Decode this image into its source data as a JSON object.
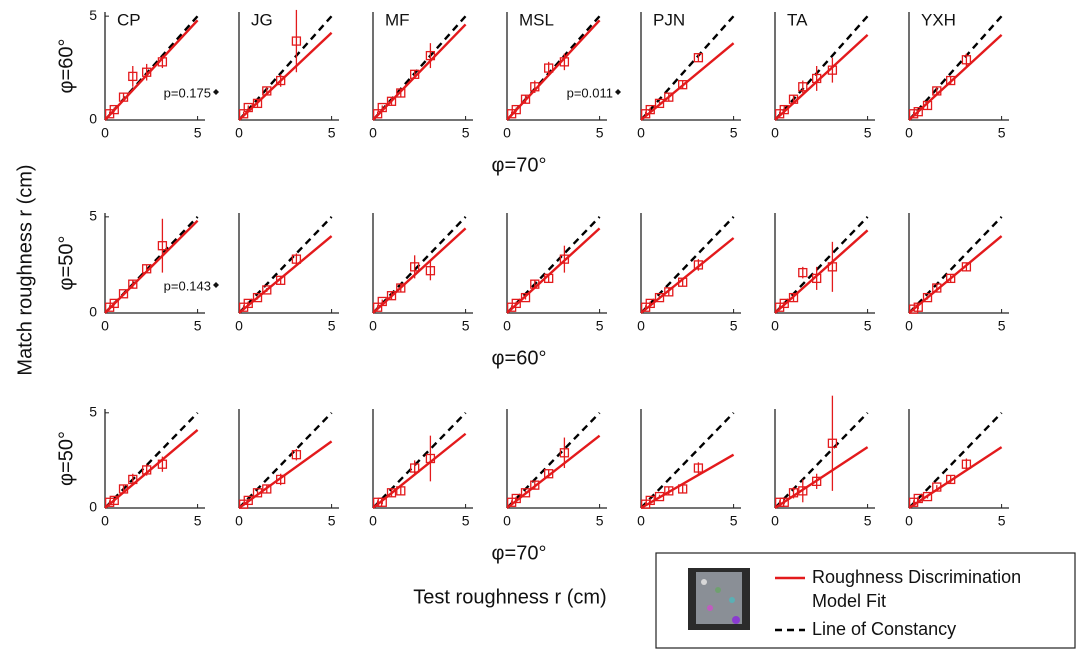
{
  "figure": {
    "y_label": "Match roughness r (cm)",
    "x_label": "Test roughness r (cm)"
  },
  "legend": {
    "entries": [
      {
        "label_lines": [
          "Roughness Discrimination",
          "Model Fit"
        ],
        "color": "#e31a1c",
        "style": "solid"
      },
      {
        "label_lines": [
          "Line of Constancy"
        ],
        "color": "#000000",
        "style": "dashed"
      }
    ]
  },
  "chart_data": [
    {
      "type": "scatter",
      "title": "CP",
      "ylabel": "φ=60°",
      "annotation": "p=0.175",
      "x": [
        0.25,
        0.5,
        1,
        1.5,
        2.25,
        3.1
      ],
      "values": [
        0.3,
        0.5,
        1.1,
        2.1,
        2.3,
        2.8
      ],
      "errors": [
        0.1,
        0.1,
        0.2,
        0.5,
        0.4,
        0.3
      ],
      "color": "#e31a1c",
      "fit": {
        "x": [
          0,
          5
        ],
        "values": [
          0,
          4.8
        ]
      },
      "constancy": {
        "x": [
          0,
          5
        ],
        "values": [
          0,
          5
        ]
      },
      "xlim": [
        0,
        5.4
      ],
      "ylim": [
        0,
        5.2
      ],
      "xticks": [
        0,
        5
      ],
      "yticks": [
        0,
        5
      ]
    },
    {
      "type": "scatter",
      "title": "JG",
      "x": [
        0.25,
        0.5,
        1,
        1.5,
        2.25,
        3.1
      ],
      "values": [
        0.3,
        0.6,
        0.8,
        1.4,
        1.9,
        3.8
      ],
      "errors": [
        0.1,
        0.1,
        0.2,
        0.2,
        0.3,
        1.5
      ],
      "color": "#e31a1c",
      "fit": {
        "x": [
          0,
          5
        ],
        "values": [
          0,
          4.2
        ]
      },
      "constancy": {
        "x": [
          0,
          5
        ],
        "values": [
          0,
          5
        ]
      },
      "xlim": [
        0,
        5.4
      ],
      "ylim": [
        0,
        5.2
      ],
      "xticks": [
        0,
        5
      ]
    },
    {
      "type": "scatter",
      "title": "MF",
      "x": [
        0.25,
        0.5,
        1,
        1.5,
        2.25,
        3.1
      ],
      "values": [
        0.3,
        0.6,
        0.9,
        1.3,
        2.2,
        3.1
      ],
      "errors": [
        0.1,
        0.1,
        0.2,
        0.2,
        0.2,
        0.6
      ],
      "color": "#e31a1c",
      "fit": {
        "x": [
          0,
          5
        ],
        "values": [
          0,
          4.6
        ]
      },
      "constancy": {
        "x": [
          0,
          5
        ],
        "values": [
          0,
          5
        ]
      },
      "xlim": [
        0,
        5.4
      ],
      "ylim": [
        0,
        5.2
      ],
      "xticks": [
        0,
        5
      ]
    },
    {
      "type": "scatter",
      "title": "MSL",
      "xlabel": "φ=70°",
      "annotation": "p=0.011",
      "x": [
        0.25,
        0.5,
        1,
        1.5,
        2.25,
        3.1
      ],
      "values": [
        0.3,
        0.5,
        1.0,
        1.6,
        2.5,
        2.8
      ],
      "errors": [
        0.1,
        0.1,
        0.2,
        0.3,
        0.3,
        0.4
      ],
      "color": "#e31a1c",
      "fit": {
        "x": [
          0,
          5
        ],
        "values": [
          0,
          4.8
        ]
      },
      "constancy": {
        "x": [
          0,
          5
        ],
        "values": [
          0,
          5
        ]
      },
      "xlim": [
        0,
        5.4
      ],
      "ylim": [
        0,
        5.2
      ],
      "xticks": [
        0,
        5
      ]
    },
    {
      "type": "scatter",
      "title": "PJN",
      "x": [
        0.25,
        0.5,
        1,
        1.5,
        2.25,
        3.1
      ],
      "values": [
        0.3,
        0.5,
        0.8,
        1.1,
        1.7,
        3.0
      ],
      "errors": [
        0.1,
        0.1,
        0.1,
        0.2,
        0.2,
        0.2
      ],
      "color": "#e31a1c",
      "fit": {
        "x": [
          0,
          5
        ],
        "values": [
          0,
          3.7
        ]
      },
      "constancy": {
        "x": [
          0,
          5
        ],
        "values": [
          0,
          5
        ]
      },
      "xlim": [
        0,
        5.4
      ],
      "ylim": [
        0,
        5.2
      ],
      "xticks": [
        0,
        5
      ]
    },
    {
      "type": "scatter",
      "title": "TA",
      "x": [
        0.25,
        0.5,
        1,
        1.5,
        2.25,
        3.1
      ],
      "values": [
        0.3,
        0.5,
        1.0,
        1.6,
        2.0,
        2.4
      ],
      "errors": [
        0.1,
        0.2,
        0.2,
        0.3,
        0.6,
        0.6
      ],
      "color": "#e31a1c",
      "fit": {
        "x": [
          0,
          5
        ],
        "values": [
          0,
          4.1
        ]
      },
      "constancy": {
        "x": [
          0,
          5
        ],
        "values": [
          0,
          5
        ]
      },
      "xlim": [
        0,
        5.4
      ],
      "ylim": [
        0,
        5.2
      ],
      "xticks": [
        0,
        5
      ]
    },
    {
      "type": "scatter",
      "title": "YXH",
      "x": [
        0.25,
        0.5,
        1,
        1.5,
        2.25,
        3.1
      ],
      "values": [
        0.3,
        0.4,
        0.7,
        1.4,
        1.9,
        2.9
      ],
      "errors": [
        0.1,
        0.1,
        0.2,
        0.2,
        0.2,
        0.3
      ],
      "color": "#e31a1c",
      "fit": {
        "x": [
          0,
          5
        ],
        "values": [
          0,
          4.1
        ]
      },
      "constancy": {
        "x": [
          0,
          5
        ],
        "values": [
          0,
          5
        ]
      },
      "xlim": [
        0,
        5.4
      ],
      "ylim": [
        0,
        5.2
      ],
      "xticks": [
        0,
        5
      ]
    },
    {
      "type": "scatter",
      "ylabel": "φ=50°",
      "annotation": "p=0.143",
      "x": [
        0.25,
        0.5,
        1,
        1.5,
        2.25,
        3.1
      ],
      "values": [
        0.3,
        0.5,
        1.0,
        1.5,
        2.3,
        3.5
      ],
      "errors": [
        0.1,
        0.1,
        0.1,
        0.2,
        0.2,
        1.4
      ],
      "color": "#e31a1c",
      "fit": {
        "x": [
          0,
          5
        ],
        "values": [
          0,
          4.8
        ]
      },
      "constancy": {
        "x": [
          0,
          5
        ],
        "values": [
          0,
          5
        ]
      },
      "xlim": [
        0,
        5.4
      ],
      "ylim": [
        0,
        5.2
      ],
      "xticks": [
        0,
        5
      ],
      "yticks": [
        0,
        5
      ]
    },
    {
      "type": "scatter",
      "x": [
        0.25,
        0.5,
        1,
        1.5,
        2.25,
        3.1
      ],
      "values": [
        0.3,
        0.5,
        0.8,
        1.2,
        1.7,
        2.8
      ],
      "errors": [
        0.1,
        0.1,
        0.1,
        0.1,
        0.2,
        0.3
      ],
      "color": "#e31a1c",
      "fit": {
        "x": [
          0,
          5
        ],
        "values": [
          0,
          4.0
        ]
      },
      "constancy": {
        "x": [
          0,
          5
        ],
        "values": [
          0,
          5
        ]
      },
      "xlim": [
        0,
        5.4
      ],
      "ylim": [
        0,
        5.2
      ],
      "xticks": [
        0,
        5
      ]
    },
    {
      "type": "scatter",
      "x": [
        0.25,
        0.5,
        1,
        1.5,
        2.25,
        3.1
      ],
      "values": [
        0.3,
        0.6,
        0.9,
        1.3,
        2.4,
        2.2
      ],
      "errors": [
        0.1,
        0.1,
        0.2,
        0.2,
        0.6,
        0.5
      ],
      "color": "#e31a1c",
      "fit": {
        "x": [
          0,
          5
        ],
        "values": [
          0,
          4.4
        ]
      },
      "constancy": {
        "x": [
          0,
          5
        ],
        "values": [
          0,
          5
        ]
      },
      "xlim": [
        0,
        5.4
      ],
      "ylim": [
        0,
        5.2
      ],
      "xticks": [
        0,
        5
      ]
    },
    {
      "type": "scatter",
      "xlabel": "φ=60°",
      "x": [
        0.25,
        0.5,
        1,
        1.5,
        2.25,
        3.1
      ],
      "values": [
        0.3,
        0.5,
        0.8,
        1.5,
        1.8,
        2.8
      ],
      "errors": [
        0.1,
        0.1,
        0.1,
        0.2,
        0.2,
        0.7
      ],
      "color": "#e31a1c",
      "fit": {
        "x": [
          0,
          5
        ],
        "values": [
          0,
          4.4
        ]
      },
      "constancy": {
        "x": [
          0,
          5
        ],
        "values": [
          0,
          5
        ]
      },
      "xlim": [
        0,
        5.4
      ],
      "ylim": [
        0,
        5.2
      ],
      "xticks": [
        0,
        5
      ]
    },
    {
      "type": "scatter",
      "x": [
        0.25,
        0.5,
        1,
        1.5,
        2.25,
        3.1
      ],
      "values": [
        0.3,
        0.5,
        0.8,
        1.1,
        1.6,
        2.5
      ],
      "errors": [
        0.1,
        0.1,
        0.1,
        0.2,
        0.2,
        0.3
      ],
      "color": "#e31a1c",
      "fit": {
        "x": [
          0,
          5
        ],
        "values": [
          0,
          3.9
        ]
      },
      "constancy": {
        "x": [
          0,
          5
        ],
        "values": [
          0,
          5
        ]
      },
      "xlim": [
        0,
        5.4
      ],
      "ylim": [
        0,
        5.2
      ],
      "xticks": [
        0,
        5
      ]
    },
    {
      "type": "scatter",
      "x": [
        0.25,
        0.5,
        1,
        1.5,
        2.25,
        3.1
      ],
      "values": [
        0.3,
        0.5,
        0.8,
        2.1,
        1.8,
        2.4
      ],
      "errors": [
        0.1,
        0.1,
        0.2,
        0.3,
        0.6,
        1.3
      ],
      "color": "#e31a1c",
      "fit": {
        "x": [
          0,
          5
        ],
        "values": [
          0,
          4.3
        ]
      },
      "constancy": {
        "x": [
          0,
          5
        ],
        "values": [
          0,
          5
        ]
      },
      "xlim": [
        0,
        5.4
      ],
      "ylim": [
        0,
        5.2
      ],
      "xticks": [
        0,
        5
      ]
    },
    {
      "type": "scatter",
      "x": [
        0.25,
        0.5,
        1,
        1.5,
        2.25,
        3.1
      ],
      "values": [
        0.2,
        0.3,
        0.8,
        1.3,
        1.8,
        2.4
      ],
      "errors": [
        0.1,
        0.1,
        0.1,
        0.2,
        0.2,
        0.2
      ],
      "color": "#e31a1c",
      "fit": {
        "x": [
          0,
          5
        ],
        "values": [
          0,
          4.0
        ]
      },
      "constancy": {
        "x": [
          0,
          5
        ],
        "values": [
          0,
          5
        ]
      },
      "xlim": [
        0,
        5.4
      ],
      "ylim": [
        0,
        5.2
      ],
      "xticks": [
        0,
        5
      ]
    },
    {
      "type": "scatter",
      "ylabel": "φ=50°",
      "x": [
        0.25,
        0.5,
        1,
        1.5,
        2.25,
        3.1
      ],
      "values": [
        0.3,
        0.4,
        1.0,
        1.5,
        2.0,
        2.3
      ],
      "errors": [
        0.1,
        0.1,
        0.2,
        0.3,
        0.3,
        0.4
      ],
      "color": "#e31a1c",
      "fit": {
        "x": [
          0,
          5
        ],
        "values": [
          0,
          4.1
        ]
      },
      "constancy": {
        "x": [
          0,
          5
        ],
        "values": [
          0,
          5
        ]
      },
      "xlim": [
        0,
        5.4
      ],
      "ylim": [
        0,
        5.2
      ],
      "xticks": [
        0,
        5
      ],
      "yticks": [
        0,
        5
      ]
    },
    {
      "type": "scatter",
      "x": [
        0.25,
        0.5,
        1,
        1.5,
        2.25,
        3.1
      ],
      "values": [
        0.2,
        0.4,
        0.8,
        1.0,
        1.5,
        2.8
      ],
      "errors": [
        0.1,
        0.1,
        0.1,
        0.2,
        0.3,
        0.3
      ],
      "color": "#e31a1c",
      "fit": {
        "x": [
          0,
          5
        ],
        "values": [
          0,
          3.5
        ]
      },
      "constancy": {
        "x": [
          0,
          5
        ],
        "values": [
          0,
          5
        ]
      },
      "xlim": [
        0,
        5.4
      ],
      "ylim": [
        0,
        5.2
      ],
      "xticks": [
        0,
        5
      ]
    },
    {
      "type": "scatter",
      "x": [
        0.25,
        0.5,
        1,
        1.5,
        2.25,
        3.1
      ],
      "values": [
        0.3,
        0.3,
        0.8,
        0.9,
        2.1,
        2.6
      ],
      "errors": [
        0.1,
        0.1,
        0.2,
        0.2,
        0.4,
        1.2
      ],
      "color": "#e31a1c",
      "fit": {
        "x": [
          0,
          5
        ],
        "values": [
          0,
          3.9
        ]
      },
      "constancy": {
        "x": [
          0,
          5
        ],
        "values": [
          0,
          5
        ]
      },
      "xlim": [
        0,
        5.4
      ],
      "ylim": [
        0,
        5.2
      ],
      "xticks": [
        0,
        5
      ]
    },
    {
      "type": "scatter",
      "xlabel": "φ=70°",
      "x": [
        0.25,
        0.5,
        1,
        1.5,
        2.25,
        3.1
      ],
      "values": [
        0.3,
        0.5,
        0.8,
        1.2,
        1.8,
        2.9
      ],
      "errors": [
        0.1,
        0.1,
        0.1,
        0.2,
        0.2,
        0.8
      ],
      "color": "#e31a1c",
      "fit": {
        "x": [
          0,
          5
        ],
        "values": [
          0,
          3.8
        ]
      },
      "constancy": {
        "x": [
          0,
          5
        ],
        "values": [
          0,
          5
        ]
      },
      "xlim": [
        0,
        5.4
      ],
      "ylim": [
        0,
        5.2
      ],
      "xticks": [
        0,
        5
      ]
    },
    {
      "type": "scatter",
      "x": [
        0.25,
        0.5,
        1,
        1.5,
        2.25,
        3.1
      ],
      "values": [
        0.2,
        0.4,
        0.6,
        0.9,
        1.0,
        2.1
      ],
      "errors": [
        0.1,
        0.1,
        0.1,
        0.2,
        0.2,
        0.3
      ],
      "color": "#e31a1c",
      "fit": {
        "x": [
          0,
          5
        ],
        "values": [
          0,
          2.8
        ]
      },
      "constancy": {
        "x": [
          0,
          5
        ],
        "values": [
          0,
          5
        ]
      },
      "xlim": [
        0,
        5.4
      ],
      "ylim": [
        0,
        5.2
      ],
      "xticks": [
        0,
        5
      ]
    },
    {
      "type": "scatter",
      "x": [
        0.25,
        0.5,
        1,
        1.5,
        2.25,
        3.1
      ],
      "values": [
        0.3,
        0.3,
        0.8,
        0.9,
        1.4,
        3.4
      ],
      "errors": [
        0.1,
        0.1,
        0.3,
        0.6,
        0.4,
        2.5
      ],
      "color": "#e31a1c",
      "fit": {
        "x": [
          0,
          5
        ],
        "values": [
          0,
          3.2
        ]
      },
      "constancy": {
        "x": [
          0,
          5
        ],
        "values": [
          0,
          5
        ]
      },
      "xlim": [
        0,
        5.4
      ],
      "ylim": [
        0,
        5.2
      ],
      "xticks": [
        0,
        5
      ]
    },
    {
      "type": "scatter",
      "x": [
        0.25,
        0.5,
        1,
        1.5,
        2.25,
        3.1
      ],
      "values": [
        0.3,
        0.5,
        0.6,
        1.1,
        1.5,
        2.3
      ],
      "errors": [
        0.1,
        0.1,
        0.1,
        0.1,
        0.2,
        0.3
      ],
      "color": "#e31a1c",
      "fit": {
        "x": [
          0,
          5
        ],
        "values": [
          0,
          3.2
        ]
      },
      "constancy": {
        "x": [
          0,
          5
        ],
        "values": [
          0,
          5
        ]
      },
      "xlim": [
        0,
        5.4
      ],
      "ylim": [
        0,
        5.2
      ],
      "xticks": [
        0,
        5
      ]
    }
  ]
}
